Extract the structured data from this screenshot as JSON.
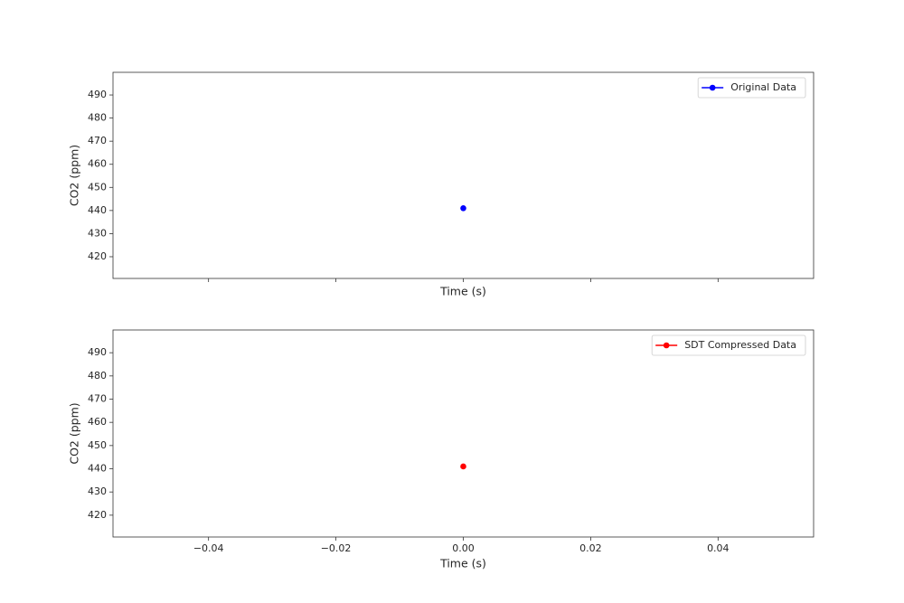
{
  "chart_data": [
    {
      "type": "line",
      "x_label": "Time (s)",
      "y_label": "CO2 (ppm)",
      "xlim": [
        -0.055,
        0.055
      ],
      "xticks": [
        -0.04,
        -0.02,
        0,
        0.02,
        0.04
      ],
      "show_xtick_labels": false,
      "ylim": [
        410.6,
        499.8
      ],
      "yticks": [
        420,
        430,
        440,
        450,
        460,
        470,
        480,
        490
      ],
      "legend": "upper right",
      "grid": false,
      "series": [
        {
          "name": "Original Data",
          "color": "#0000ff",
          "x": [
            0
          ],
          "values": [
            441
          ]
        }
      ]
    },
    {
      "type": "line",
      "x_label": "Time (s)",
      "y_label": "CO2 (ppm)",
      "xlim": [
        -0.055,
        0.055
      ],
      "xticks": [
        {
          "value": -0.04,
          "label": "−0.04"
        },
        {
          "value": -0.02,
          "label": "−0.02"
        },
        {
          "value": 0,
          "label": "0.00"
        },
        0.02,
        0.04
      ],
      "show_xtick_labels": true,
      "ylim": [
        410.6,
        499.8
      ],
      "yticks": [
        420,
        430,
        440,
        450,
        460,
        470,
        480,
        490
      ],
      "legend": "upper right",
      "grid": false,
      "series": [
        {
          "name": "SDT Compressed Data",
          "color": "#ff0000",
          "x": [
            0
          ],
          "values": [
            441
          ]
        }
      ]
    }
  ]
}
